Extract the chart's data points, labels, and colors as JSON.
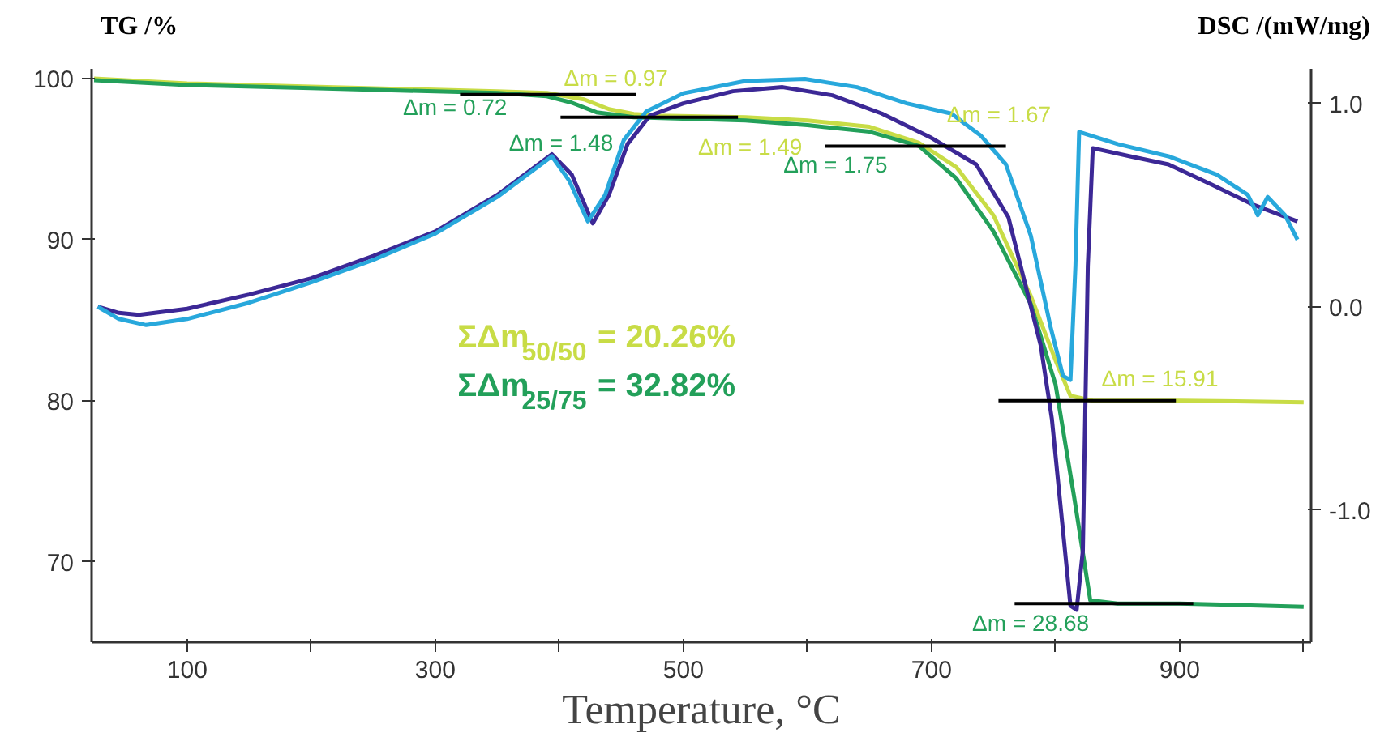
{
  "chart_data": {
    "type": "line",
    "xlabel": "Temperature, °C",
    "ylabel": "TG /%",
    "y2label": "DSC /(mW/mg)",
    "xlim": [
      23,
      1006
    ],
    "ylim": [
      65,
      100.6
    ],
    "y2lim": [
      -1.65,
      1.17
    ],
    "xticks": [
      100,
      {
        "value": 200,
        "label": null
      },
      300,
      {
        "value": 400,
        "label": null
      },
      500,
      {
        "value": 600,
        "label": null
      },
      700,
      {
        "value": 800,
        "label": null
      },
      900,
      {
        "value": 1000,
        "label": null
      }
    ],
    "yticks": [
      70,
      80,
      90,
      100
    ],
    "y2ticks": [
      {
        "value": -1.0,
        "label": "-1.0"
      },
      {
        "value": 0.0,
        "label": "0.0"
      },
      {
        "value": 1.0,
        "label": "1.0"
      }
    ],
    "grid": false,
    "marker": "none",
    "line_style": "solid",
    "series": [
      {
        "color": "#c8dc46",
        "x": [
          25,
          100,
          200,
          300,
          350,
          390,
          420,
          440,
          460,
          480,
          550,
          600,
          650,
          690,
          720,
          750,
          780,
          800,
          812,
          830,
          900,
          1000
        ],
        "values": [
          100,
          99.7,
          99.5,
          99.3,
          99.2,
          99.1,
          98.7,
          98.1,
          97.8,
          97.7,
          97.6,
          97.4,
          97.0,
          96.0,
          94.5,
          91.5,
          86.5,
          82.5,
          80.3,
          80.0,
          80.0,
          79.9
        ]
      },
      {
        "color": "#23a05a",
        "x": [
          25,
          100,
          200,
          300,
          350,
          390,
          410,
          430,
          460,
          550,
          600,
          650,
          690,
          720,
          750,
          780,
          800,
          815,
          828,
          850,
          900,
          1000
        ],
        "values": [
          99.9,
          99.6,
          99.4,
          99.2,
          99.1,
          98.9,
          98.5,
          97.9,
          97.6,
          97.4,
          97.1,
          96.7,
          95.8,
          93.8,
          90.5,
          86.0,
          81.0,
          74.0,
          67.6,
          67.4,
          67.4,
          67.2
        ]
      },
      {
        "color": "#3c2896",
        "axis": "y2",
        "x": [
          28,
          45,
          61,
          100,
          150,
          200,
          250,
          300,
          350,
          394,
          410,
          427,
          440,
          455,
          473,
          500,
          540,
          580,
          620,
          660,
          700,
          736,
          762,
          788,
          797,
          812,
          817,
          822,
          826,
          830,
          860,
          891,
          926,
          960,
          995
        ],
        "values": [
          0.0,
          -0.03,
          -0.04,
          -0.01,
          0.06,
          0.14,
          0.25,
          0.37,
          0.55,
          0.75,
          0.65,
          0.41,
          0.55,
          0.8,
          0.94,
          1.0,
          1.06,
          1.08,
          1.04,
          0.95,
          0.83,
          0.7,
          0.44,
          -0.19,
          -0.55,
          -1.47,
          -1.49,
          -1.2,
          0.2,
          0.78,
          0.74,
          0.7,
          0.6,
          0.5,
          0.42
        ]
      },
      {
        "color": "#28a8dc",
        "axis": "y2",
        "x": [
          28,
          45,
          67,
          100,
          150,
          200,
          250,
          300,
          350,
          394,
          408,
          423,
          437,
          452,
          470,
          500,
          550,
          598,
          640,
          680,
          716,
          740,
          760,
          780,
          796,
          806,
          812,
          816,
          819,
          850,
          891,
          930,
          955,
          963,
          971,
          985,
          995
        ],
        "values": [
          0.0,
          -0.06,
          -0.09,
          -0.06,
          0.02,
          0.12,
          0.23,
          0.36,
          0.54,
          0.74,
          0.62,
          0.42,
          0.55,
          0.82,
          0.96,
          1.05,
          1.11,
          1.12,
          1.08,
          1.0,
          0.95,
          0.84,
          0.7,
          0.35,
          -0.1,
          -0.34,
          -0.36,
          0.2,
          0.86,
          0.8,
          0.74,
          0.65,
          0.55,
          0.45,
          0.54,
          0.45,
          0.33
        ]
      },
      {
        "color": "#000000",
        "x": [
          320,
          462
        ],
        "values": [
          99.0,
          99.0
        ]
      },
      {
        "color": "#000000",
        "x": [
          401,
          544
        ],
        "values": [
          97.6,
          97.6
        ]
      },
      {
        "color": "#000000",
        "x": [
          614,
          760
        ],
        "values": [
          95.8,
          95.8
        ]
      },
      {
        "color": "#000000",
        "x": [
          754,
          897
        ],
        "values": [
          80.0,
          80.0
        ]
      },
      {
        "color": "#000000",
        "x": [
          767,
          911
        ],
        "values": [
          67.4,
          67.4
        ]
      }
    ],
    "annotations": [
      "Δm = 0.97",
      "Δm = 0.72",
      "Δm = 1.49",
      "Δm = 1.48",
      "Δm = 1.67",
      "Δm = 1.75",
      "Δm = 15.91",
      "Δm = 28.68",
      "ΣΔm$_{50/50}$ = 20.26%",
      "ΣΔm$_{25/75}$ = 32.82%"
    ]
  }
}
